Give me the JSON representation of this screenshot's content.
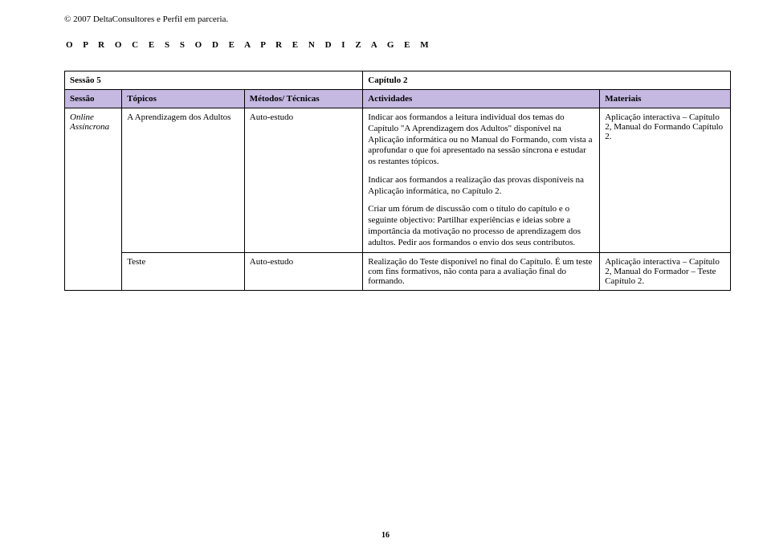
{
  "copyright": "© 2007 DeltaConsultores e Perfil em parceria.",
  "section_header": "O  P R O C E S S O  D E  A P R E N D I Z A G E M",
  "title_row": {
    "session_label": "Sessão 5",
    "chapter_label": "Capítulo 2"
  },
  "headers": {
    "session": "Sessão",
    "topics": "Tópicos",
    "methods": "Métodos/ Técnicas",
    "activities": "Actividades",
    "materials": "Materiais"
  },
  "rows": [
    {
      "session_line1": "Online",
      "session_line2": "Assíncrona",
      "topic": "A Aprendizagem dos Adultos",
      "method": "Auto-estudo",
      "act_p1": "Indicar aos formandos a leitura individual dos temas do Capítulo \"A Aprendizagem dos Adultos\" disponível na Aplicação informática ou no Manual do Formando, com vista a aprofundar o que foi apresentado na sessão síncrona e estudar os restantes tópicos.",
      "act_p2": "Indicar aos formandos a realização das provas disponíveis na Aplicação informática, no Capítulo 2.",
      "act_p3": "Criar um fórum de discussão com o título do capítulo e o seguinte objectivo: Partilhar experiências e ideias sobre a importância da motivação no processo de aprendizagem dos adultos. Pedir aos formandos o envio dos seus contributos.",
      "materials": "Aplicação interactiva – Capítulo 2, Manual do Formando Capítulo 2."
    },
    {
      "topic": "Teste",
      "method": "Auto-estudo",
      "activities": "Realização do Teste disponível no final do Capítulo. É um teste com fins formativos, não conta para a avaliação final do formando.",
      "materials": "Aplicação interactiva – Capítulo 2, Manual do Formador – Teste Capítulo 2."
    }
  ],
  "page_number": "16",
  "colors": {
    "header_bg": "#c5b9e2",
    "border": "#000000",
    "text": "#000000",
    "bg": "#ffffff"
  }
}
